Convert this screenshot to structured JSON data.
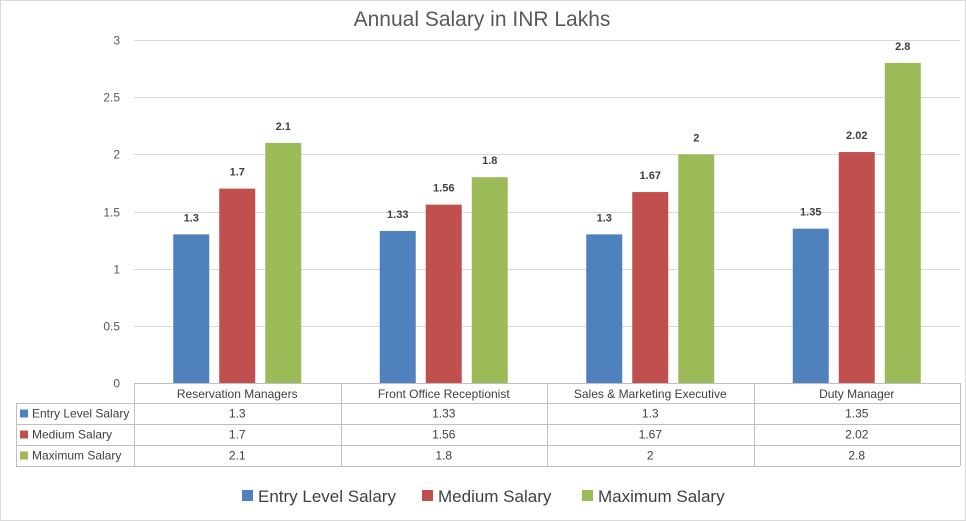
{
  "chart_data": {
    "type": "bar",
    "title": "Annual Salary in INR Lakhs",
    "categories": [
      "Reservation Managers",
      "Front Office Receptionist",
      "Sales & Marketing Executive",
      "Duty Manager"
    ],
    "series": [
      {
        "name": "Entry Level Salary",
        "values": [
          1.3,
          1.33,
          1.3,
          1.35
        ],
        "labels": [
          "1.3",
          "1.33",
          "1.3",
          "1.35"
        ],
        "color": "#4F81BD"
      },
      {
        "name": "Medium Salary",
        "values": [
          1.7,
          1.56,
          1.67,
          2.02
        ],
        "labels": [
          "1.7",
          "1.56",
          "1.67",
          "2.02"
        ],
        "color": "#C0504D"
      },
      {
        "name": "Maximum Salary",
        "values": [
          2.1,
          1.8,
          2,
          2.8
        ],
        "labels": [
          "2.1",
          "1.8",
          "2",
          "2.8"
        ],
        "color": "#9BBB59"
      }
    ],
    "ylim": [
      0,
      3
    ],
    "yticks": [
      "0",
      "0.5",
      "1",
      "1.5",
      "2",
      "2.5",
      "3"
    ],
    "xlabel": "",
    "ylabel": "",
    "grid": true,
    "data_table": true,
    "legend_position": "bottom"
  },
  "colors": {
    "grid": "#D9D9D9",
    "table_border": "#BFBFBF"
  }
}
